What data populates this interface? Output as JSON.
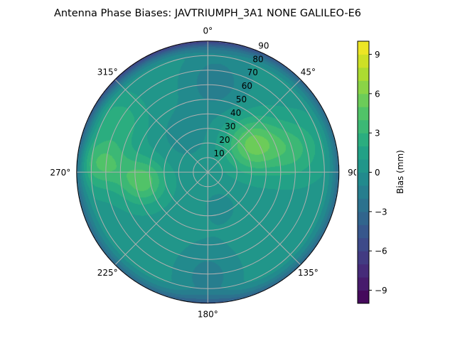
{
  "chart_data": {
    "type": "heatmap",
    "subtype": "polar-filled-contour",
    "title": "Antenna Phase Biases: JAVTRIUMPH_3A1  NONE GALILEO-E6",
    "colorbar_label": "Bias (mm)",
    "colormap": "viridis",
    "value_range": [
      -10,
      10
    ],
    "contour_levels_step": 1,
    "colorbar_ticks": [
      "9",
      "6",
      "3",
      "0",
      "−3",
      "−6",
      "−9"
    ],
    "colorbar_tick_values": [
      9,
      6,
      3,
      0,
      -3,
      -6,
      -9
    ],
    "angular_axis": {
      "zero_location": "north",
      "direction": "clockwise",
      "ticks": [
        "0°",
        "45°",
        "90°",
        "135°",
        "180°",
        "225°",
        "270°",
        "315°"
      ],
      "tick_values": [
        0,
        45,
        90,
        135,
        180,
        225,
        270,
        315
      ]
    },
    "radial_axis": {
      "range": [
        0,
        90
      ],
      "label_angle": 22.5,
      "ticks": [
        "10",
        "20",
        "30",
        "40",
        "50",
        "60",
        "70",
        "80",
        "90"
      ],
      "tick_values": [
        10,
        20,
        30,
        40,
        50,
        60,
        70,
        80,
        90
      ]
    },
    "grid": true,
    "field_baseline_mm": 0.6,
    "field_features": [
      {
        "azimuth": 58,
        "zenith": 36,
        "bias_mm": 4.6,
        "spread": 13
      },
      {
        "azimuth": 75,
        "zenith": 60,
        "bias_mm": 2.6,
        "spread": 14
      },
      {
        "azimuth": 262,
        "zenith": 45,
        "bias_mm": 4.0,
        "spread": 11
      },
      {
        "azimuth": 275,
        "zenith": 72,
        "bias_mm": 3.6,
        "spread": 12
      },
      {
        "azimuth": 300,
        "zenith": 70,
        "bias_mm": 2.0,
        "spread": 12
      },
      {
        "azimuth": 5,
        "zenith": 62,
        "bias_mm": -2.2,
        "spread": 16
      },
      {
        "azimuth": 180,
        "zenith": 72,
        "bias_mm": -2.0,
        "spread": 16
      },
      {
        "azimuth": 330,
        "zenith": 30,
        "bias_mm": -1.2,
        "spread": 12
      },
      {
        "azimuth": 160,
        "zenith": 25,
        "bias_mm": -0.8,
        "spread": 12
      }
    ],
    "edge_falloff": {
      "from_zenith": 78,
      "edge_bias_mm": -3.5,
      "north_edge_bias_mm": -6.5
    }
  }
}
